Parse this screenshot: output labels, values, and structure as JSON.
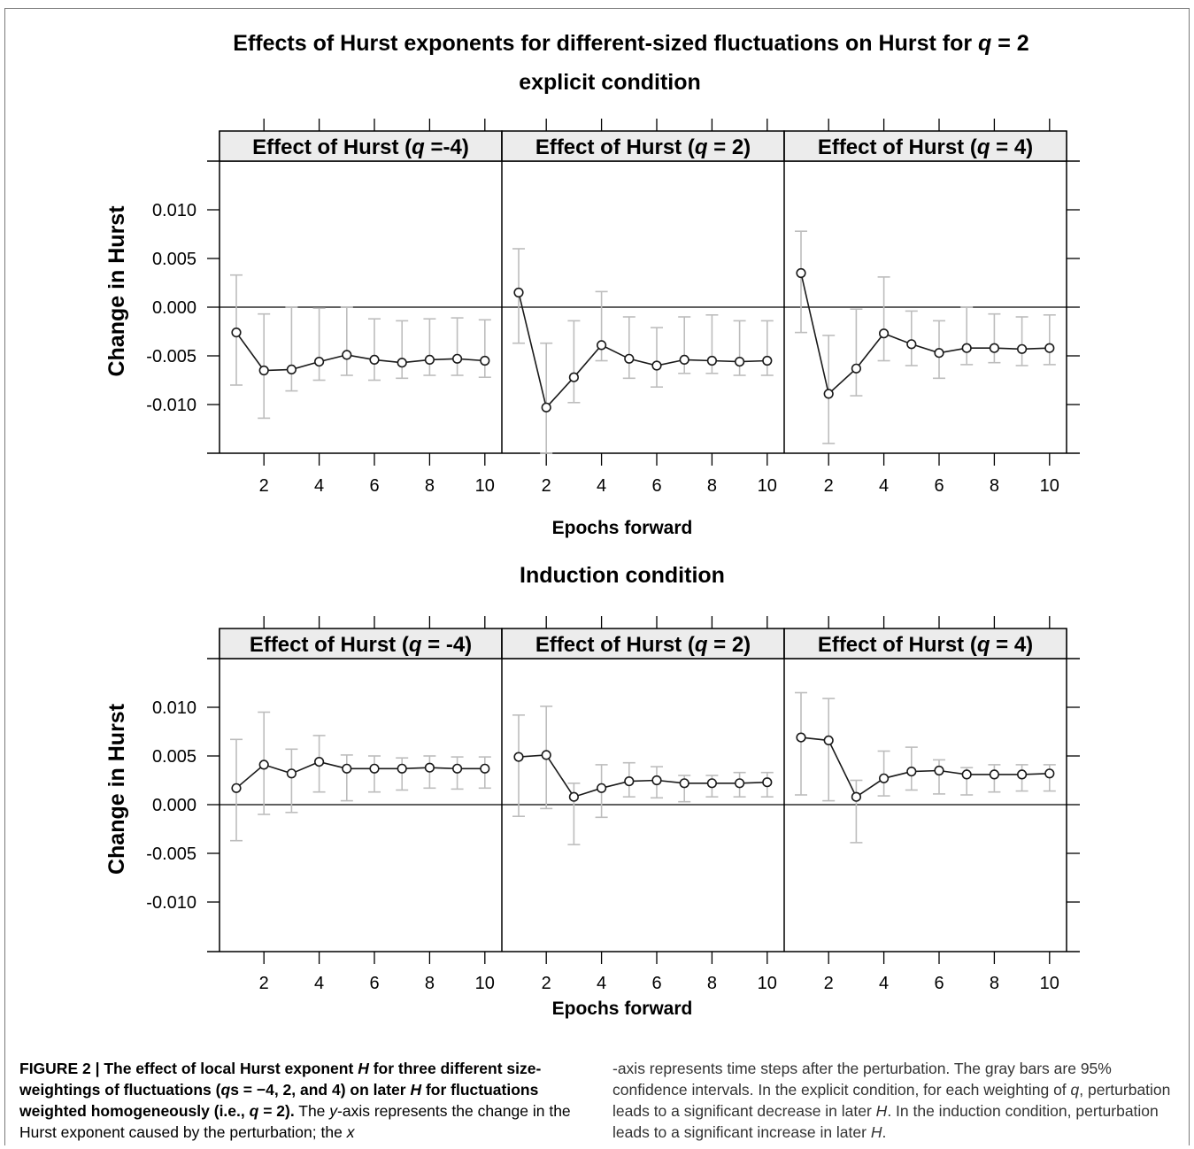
{
  "figure": {
    "title_line1_pre": "Effects of Hurst exponents for different-sized fluctuations on Hurst for ",
    "title_line1_q": "q",
    "title_line1_post": " = 2",
    "title_line2": "explicit condition",
    "subtitle_induction": "Induction condition"
  },
  "caption": {
    "fig_label": "FIGURE 2 | ",
    "bold_1": "The effect of local Hurst exponent ",
    "bold_H1": "H",
    "bold_2": " for three different size-weightings of fluctuations (",
    "bold_q1": "q",
    "bold_3": "s = −4, 2, and 4) on later ",
    "bold_H2": "H",
    "bold_4": " for fluctuations weighted homogeneously (i.e., ",
    "bold_q2": "q",
    "bold_5": " = 2).",
    "text_1": " The ",
    "text_y": "y",
    "text_2": "-axis represents the change in the Hurst exponent caused by the perturbation; the ",
    "text_x": "x",
    "text_3": "-axis represents time steps after the perturbation. The gray bars are 95% confidence intervals. In the explicit condition, for each weighting of ",
    "text_q": "q",
    "text_4": ", perturbation leads to a significant decrease in later ",
    "text_H1": "H",
    "text_5": ". In the induction condition, perturbation leads to a significant increase in later ",
    "text_H2": "H",
    "text_6": "."
  },
  "chart_data": [
    {
      "type": "line",
      "condition": "explicit condition",
      "ylabel": "Change in Hurst",
      "xlabel": "Epochs forward",
      "ylim": [
        -0.015,
        0.015
      ],
      "xlim": [
        0.5,
        10.8
      ],
      "yticks": [
        "0.010",
        "0.005",
        "0.000",
        "-0.005",
        "-0.010"
      ],
      "ytick_values": [
        0.01,
        0.005,
        0.0,
        -0.005,
        -0.01
      ],
      "xticks": [
        2,
        4,
        6,
        8,
        10
      ],
      "reference_line": 0,
      "panels": [
        {
          "strip_pre": "Effect of Hurst (",
          "strip_q": "q",
          "strip_post": " =-4)",
          "x": [
            1,
            2,
            3,
            4,
            5,
            6,
            7,
            8,
            9,
            10
          ],
          "y": [
            -0.0026,
            -0.0065,
            -0.0064,
            -0.0056,
            -0.0049,
            -0.0054,
            -0.0057,
            -0.0054,
            -0.0053,
            -0.0055
          ],
          "ci_low": [
            -0.008,
            -0.0114,
            -0.0086,
            -0.0075,
            -0.007,
            -0.0075,
            -0.0073,
            -0.007,
            -0.007,
            -0.0072
          ],
          "ci_high": [
            0.0033,
            -0.0007,
            0.0,
            -0.0001,
            0.0,
            -0.0012,
            -0.0014,
            -0.0012,
            -0.0011,
            -0.0013
          ]
        },
        {
          "strip_pre": "Effect of Hurst (",
          "strip_q": "q",
          "strip_post": " = 2)",
          "x": [
            1,
            2,
            3,
            4,
            5,
            6,
            7,
            8,
            9,
            10
          ],
          "y": [
            0.0015,
            -0.0103,
            -0.0072,
            -0.0039,
            -0.0053,
            -0.006,
            -0.0054,
            -0.0055,
            -0.0056,
            -0.0055
          ],
          "ci_low": [
            -0.0037,
            -0.015,
            -0.0098,
            -0.0055,
            -0.0073,
            -0.0082,
            -0.0068,
            -0.0068,
            -0.007,
            -0.007
          ],
          "ci_high": [
            0.006,
            -0.0037,
            -0.0014,
            0.0016,
            -0.001,
            -0.0021,
            -0.001,
            -0.0008,
            -0.0014,
            -0.0014
          ]
        },
        {
          "strip_pre": "Effect of Hurst (",
          "strip_q": "q",
          "strip_post": " = 4)",
          "x": [
            1,
            2,
            3,
            4,
            5,
            6,
            7,
            8,
            9,
            10
          ],
          "y": [
            0.0035,
            -0.0089,
            -0.0063,
            -0.0027,
            -0.0038,
            -0.0047,
            -0.0042,
            -0.0042,
            -0.0043,
            -0.0042
          ],
          "ci_low": [
            -0.0026,
            -0.014,
            -0.0091,
            -0.0055,
            -0.006,
            -0.0073,
            -0.0059,
            -0.0057,
            -0.006,
            -0.0059
          ],
          "ci_high": [
            0.0078,
            -0.0029,
            -0.0002,
            0.0031,
            -0.0004,
            -0.0014,
            0.0,
            -0.0007,
            -0.001,
            -0.0008
          ]
        }
      ]
    },
    {
      "type": "line",
      "condition": "Induction condition",
      "ylabel": "Change in Hurst",
      "xlabel": "Epochs forward",
      "ylim": [
        -0.015,
        0.015
      ],
      "xlim": [
        0.5,
        10.8
      ],
      "yticks": [
        "0.010",
        "0.005",
        "0.000",
        "-0.005",
        "-0.010"
      ],
      "ytick_values": [
        0.01,
        0.005,
        0.0,
        -0.005,
        -0.01
      ],
      "xticks": [
        2,
        4,
        6,
        8,
        10
      ],
      "reference_line": 0,
      "panels": [
        {
          "strip_pre": "Effect of Hurst (",
          "strip_q": "q",
          "strip_post": " = -4)",
          "x": [
            1,
            2,
            3,
            4,
            5,
            6,
            7,
            8,
            9,
            10
          ],
          "y": [
            0.0017,
            0.0041,
            0.0032,
            0.0044,
            0.0037,
            0.0037,
            0.0037,
            0.0038,
            0.0037,
            0.0037
          ],
          "ci_low": [
            -0.0037,
            -0.001,
            -0.0008,
            0.0013,
            0.0004,
            0.0013,
            0.0015,
            0.0017,
            0.0016,
            0.0017
          ],
          "ci_high": [
            0.0067,
            0.0095,
            0.0057,
            0.0071,
            0.0051,
            0.005,
            0.0048,
            0.005,
            0.0049,
            0.0049
          ]
        },
        {
          "strip_pre": "Effect of Hurst (",
          "strip_q": "q",
          "strip_post": " = 2)",
          "x": [
            1,
            2,
            3,
            4,
            5,
            6,
            7,
            8,
            9,
            10
          ],
          "y": [
            0.0049,
            0.0051,
            0.0008,
            0.0017,
            0.0024,
            0.0025,
            0.0022,
            0.0022,
            0.0022,
            0.0023
          ],
          "ci_low": [
            -0.0012,
            -0.0004,
            -0.0041,
            -0.0013,
            0.0008,
            0.0007,
            0.0003,
            0.0008,
            0.0008,
            0.0008
          ],
          "ci_high": [
            0.0092,
            0.0101,
            0.0022,
            0.0041,
            0.0043,
            0.0039,
            0.003,
            0.003,
            0.0033,
            0.0033
          ]
        },
        {
          "strip_pre": "Effect of Hurst (",
          "strip_q": "q",
          "strip_post": " = 4)",
          "x": [
            1,
            2,
            3,
            4,
            5,
            6,
            7,
            8,
            9,
            10
          ],
          "y": [
            0.0069,
            0.0066,
            0.0008,
            0.0027,
            0.0034,
            0.0035,
            0.0031,
            0.0031,
            0.0031,
            0.0032
          ],
          "ci_low": [
            0.001,
            0.0004,
            -0.0039,
            0.0009,
            0.0015,
            0.0011,
            0.001,
            0.0013,
            0.0014,
            0.0014
          ],
          "ci_high": [
            0.0115,
            0.0109,
            0.0025,
            0.0055,
            0.0059,
            0.0046,
            0.0038,
            0.0041,
            0.0041,
            0.0041
          ]
        }
      ]
    }
  ]
}
